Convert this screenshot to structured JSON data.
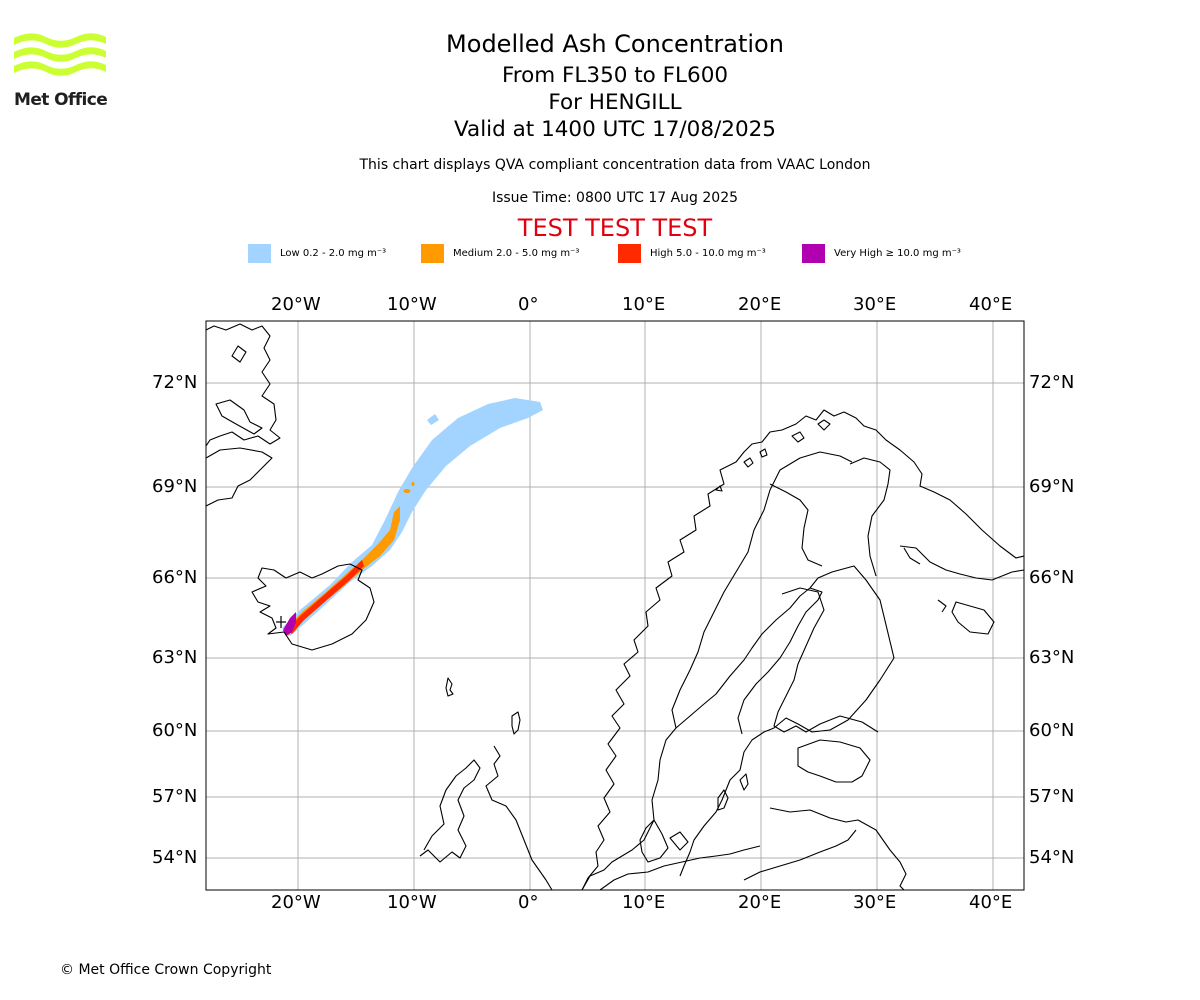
{
  "logo": {
    "name": "Met Office",
    "wave_color": "#ccff33",
    "text_color": "#202020"
  },
  "header": {
    "title": "Modelled Ash Concentration",
    "flight_levels": "From FL350 to FL600",
    "volcano": "For HENGILL",
    "valid_time": "Valid at 1400 UTC 17/08/2025",
    "note": "This chart displays QVA compliant concentration data from VAAC London",
    "issue_time": "Issue Time: 0800 UTC 17 Aug 2025",
    "test_banner": "TEST TEST TEST"
  },
  "legend": [
    {
      "label": "Low 0.2 - 2.0 mg m⁻³",
      "color": "#a3d4ff"
    },
    {
      "label": "Medium 2.0 - 5.0 mg m⁻³",
      "color": "#ff9a00"
    },
    {
      "label": "High 5.0 - 10.0 mg m⁻³",
      "color": "#ff2a00"
    },
    {
      "label": "Very High ≥ 10.0 mg m⁻³",
      "color": "#b000b0"
    }
  ],
  "map": {
    "lon_labels": [
      "20°W",
      "10°W",
      "0°",
      "10°E",
      "20°E",
      "30°E",
      "40°E"
    ],
    "lat_labels": [
      "72°N",
      "69°N",
      "66°N",
      "63°N",
      "60°N",
      "57°N",
      "54°N"
    ],
    "grid_color": "#b0b0b0",
    "coast_color": "#000000"
  },
  "footer": {
    "copyright": "© Met Office Crown Copyright"
  }
}
